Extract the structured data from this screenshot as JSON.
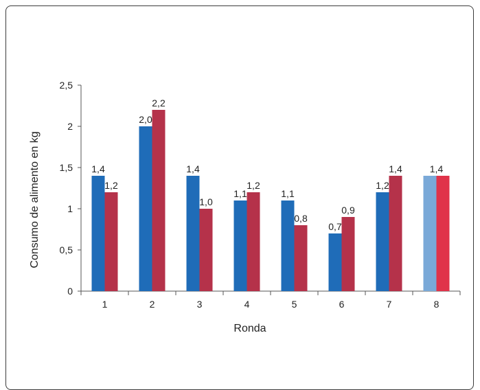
{
  "chart_data": {
    "type": "bar",
    "xlabel": "Ronda",
    "ylabel": "Consumo de alimento en kg",
    "ylim": [
      0,
      2.5
    ],
    "yticks": [
      "0",
      "0,5",
      "1",
      "1,5",
      "2",
      "2,5"
    ],
    "categories": [
      "1",
      "2",
      "3",
      "4",
      "5",
      "6",
      "7",
      "8"
    ],
    "series": [
      {
        "color": "#1f6cb8",
        "values": [
          1.4,
          2.0,
          1.4,
          1.1,
          1.1,
          0.7,
          1.2,
          1.4
        ],
        "labels": [
          "1,4",
          "2,0",
          "1,4",
          "1,1",
          "1,1",
          "0,7",
          "1,2",
          ""
        ]
      },
      {
        "color": "#b5324a",
        "values": [
          1.2,
          2.2,
          1.0,
          1.2,
          0.8,
          0.9,
          1.4,
          1.4
        ],
        "labels": [
          "1,2",
          "2,2",
          "1,0",
          "1,2",
          "0,8",
          "0,9",
          "1,4",
          ""
        ]
      }
    ],
    "highlight": {
      "category": "8",
      "colors": [
        "#7aa9d8",
        "#e0334a"
      ],
      "label": "1,4"
    },
    "grid": false,
    "legend": "none"
  }
}
